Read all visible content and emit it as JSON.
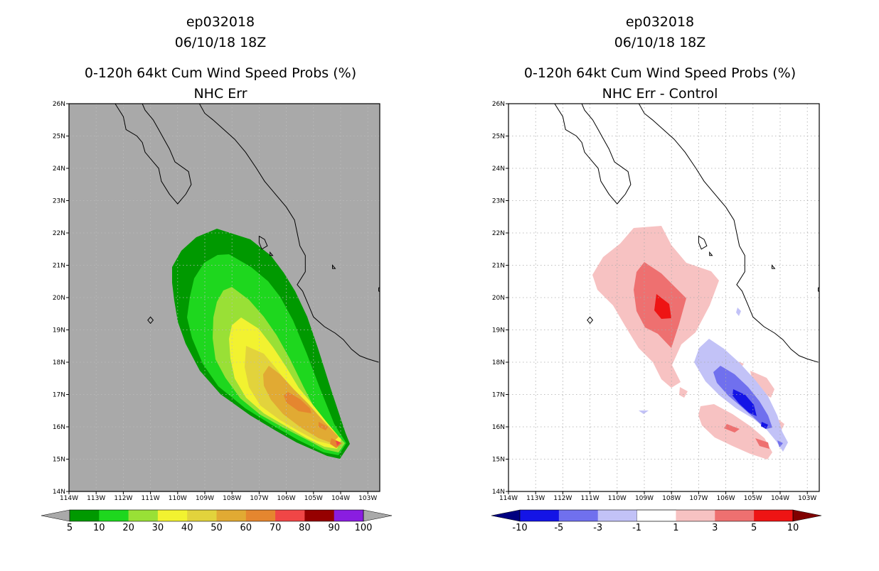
{
  "panels": [
    {
      "title_lines": [
        "ep032018",
        "06/10/18 18Z",
        "0-120h 64kt Cum Wind Speed Probs (%)",
        "NHC Err"
      ],
      "background": "#a9a9a9",
      "colorbar": {
        "labels": [
          "5",
          "10",
          "20",
          "30",
          "40",
          "50",
          "60",
          "70",
          "80",
          "90",
          "100"
        ],
        "colors": [
          "#009900",
          "#1ed71e",
          "#99e036",
          "#f2f230",
          "#e2d33c",
          "#e1aa33",
          "#e5862f",
          "#f04646",
          "#960000",
          "#8a1de0"
        ],
        "low_arrow_color": "#a9a9a9",
        "high_arrow_color": "#a9a9a9"
      }
    },
    {
      "title_lines": [
        "ep032018",
        "06/10/18 18Z",
        "0-120h 64kt Cum Wind Speed Probs (%)",
        "NHC Err - Control"
      ],
      "background": "#ffffff",
      "colorbar": {
        "labels": [
          "-10",
          "-5",
          "-3",
          "-1",
          "1",
          "3",
          "5",
          "10"
        ],
        "colors": [
          "#1414e6",
          "#7070ee",
          "#c2c2f7",
          "#ffffff",
          "#f7c2c2",
          "#ee7070",
          "#ee1414"
        ],
        "low_arrow_color": "#000080",
        "high_arrow_color": "#800000"
      }
    }
  ],
  "chart_data": [
    {
      "type": "heatmap",
      "title": "0-120h 64kt Cum Wind Speed Probs (%) - NHC Err",
      "storm": "ep032018",
      "date": "06/10/18 18Z",
      "lon_labels": [
        "114W",
        "113W",
        "112W",
        "111W",
        "110W",
        "109W",
        "108W",
        "107W",
        "106W",
        "105W",
        "104W",
        "103W"
      ],
      "lat_labels": [
        "14N",
        "15N",
        "16N",
        "17N",
        "18N",
        "19N",
        "20N",
        "21N",
        "22N",
        "23N",
        "24N",
        "25N",
        "26N"
      ],
      "xlim": [
        -114,
        -102.6
      ],
      "ylim": [
        14,
        26
      ],
      "contour_levels": [
        5,
        10,
        20,
        30,
        40,
        50,
        60,
        70,
        80,
        90,
        100
      ],
      "max_probability_region": {
        "lon": -104.1,
        "lat": 15.5,
        "value_range": "70-80"
      },
      "colors_used": [
        "#009900",
        "#1ed71e",
        "#99e036",
        "#f2f230",
        "#e2d33c",
        "#e1aa33",
        "#e5862f",
        "#f04646"
      ]
    },
    {
      "type": "heatmap",
      "title": "0-120h 64kt Cum Wind Speed Probs (%) - NHC Err - Control",
      "storm": "ep032018",
      "date": "06/10/18 18Z",
      "lon_labels": [
        "114W",
        "113W",
        "112W",
        "111W",
        "110W",
        "109W",
        "108W",
        "107W",
        "106W",
        "105W",
        "104W",
        "103W"
      ],
      "lat_labels": [
        "14N",
        "15N",
        "16N",
        "17N",
        "18N",
        "19N",
        "20N",
        "21N",
        "22N",
        "23N",
        "24N",
        "25N",
        "26N"
      ],
      "xlim": [
        -114,
        -102.6
      ],
      "ylim": [
        14,
        26
      ],
      "contour_levels": [
        -10,
        -5,
        -3,
        -1,
        1,
        3,
        5,
        10
      ],
      "positive_max_region": {
        "lon": -108.2,
        "lat": 19.8,
        "value_range": "5-10"
      },
      "negative_max_region": {
        "lon": -105.3,
        "lat": 16.6,
        "value_range": "-10 to -5"
      }
    }
  ]
}
